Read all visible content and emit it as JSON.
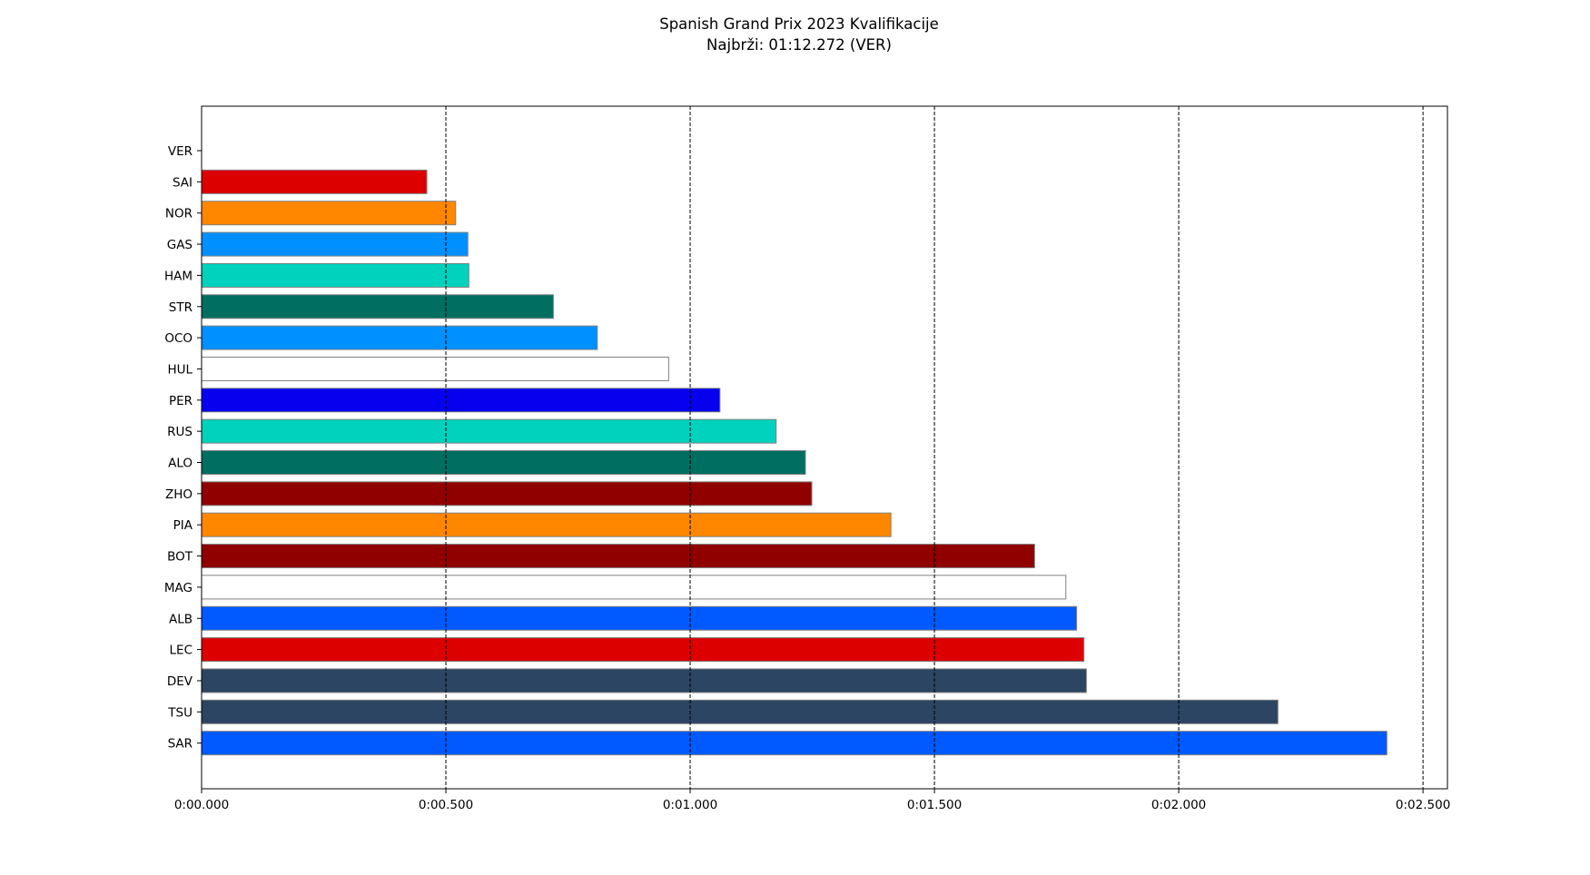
{
  "chart_data": {
    "type": "bar",
    "orientation": "horizontal",
    "title": "Spanish Grand Prix 2023 Kvalifikacije",
    "subtitle": "Najbrži: 01:12.272 (VER)",
    "xlabel": "",
    "ylabel": "",
    "xlim": [
      0,
      2.55
    ],
    "x_ticks": [
      0,
      0.5,
      1.0,
      1.5,
      2.0,
      2.5
    ],
    "x_tick_labels": [
      "0:00.000",
      "0:00.500",
      "0:01.000",
      "0:01.500",
      "0:02.000",
      "0:02.500"
    ],
    "grid": "x-dashed",
    "categories": [
      "VER",
      "SAI",
      "NOR",
      "GAS",
      "HAM",
      "STR",
      "OCO",
      "HUL",
      "PER",
      "RUS",
      "ALO",
      "ZHO",
      "PIA",
      "BOT",
      "MAG",
      "ALB",
      "LEC",
      "DEV",
      "TSU",
      "SAR"
    ],
    "values": [
      0.0,
      0.461,
      0.52,
      0.545,
      0.547,
      0.72,
      0.81,
      0.956,
      1.061,
      1.176,
      1.236,
      1.249,
      1.411,
      1.705,
      1.769,
      1.791,
      1.806,
      1.811,
      2.203,
      2.426
    ],
    "colors": [
      "#3671C6",
      "#DC0000",
      "#FF8700",
      "#0090FF",
      "#00D2BE",
      "#006F62",
      "#0090FF",
      "#FFFFFF",
      "#0600EF",
      "#00D2BE",
      "#006F62",
      "#900000",
      "#FF8700",
      "#900000",
      "#FFFFFF",
      "#005AFF",
      "#DC0000",
      "#2B4562",
      "#2B4562",
      "#005AFF"
    ]
  }
}
